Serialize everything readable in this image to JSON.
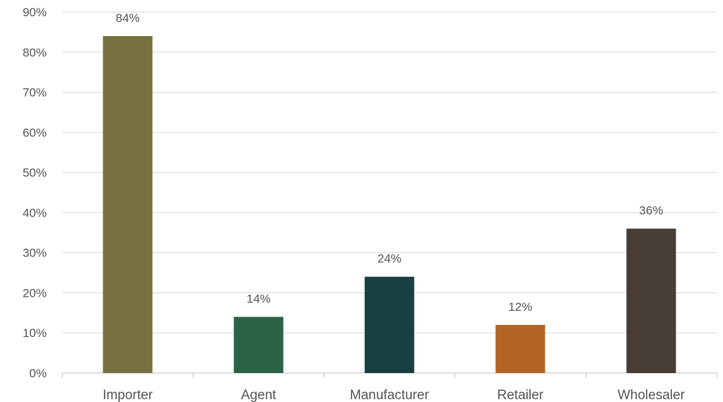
{
  "chart_data": {
    "type": "bar",
    "title": "",
    "xlabel": "",
    "ylabel": "",
    "categories": [
      "Importer",
      "Agent",
      "Manufacturer",
      "Retailer",
      "Wholesaler"
    ],
    "values": [
      84,
      14,
      24,
      12,
      36
    ],
    "data_labels": [
      "84%",
      "14%",
      "24%",
      "12%",
      "36%"
    ],
    "colors": [
      "#777142",
      "#2c6348",
      "#183f42",
      "#b46426",
      "#473d35"
    ],
    "ylim": [
      0,
      90
    ],
    "y_ticks": [
      0,
      10,
      20,
      30,
      40,
      50,
      60,
      70,
      80,
      90
    ],
    "y_tick_labels": [
      "0%",
      "10%",
      "20%",
      "30%",
      "40%",
      "50%",
      "60%",
      "70%",
      "80%",
      "90%"
    ],
    "grid": true,
    "legend": "none"
  }
}
